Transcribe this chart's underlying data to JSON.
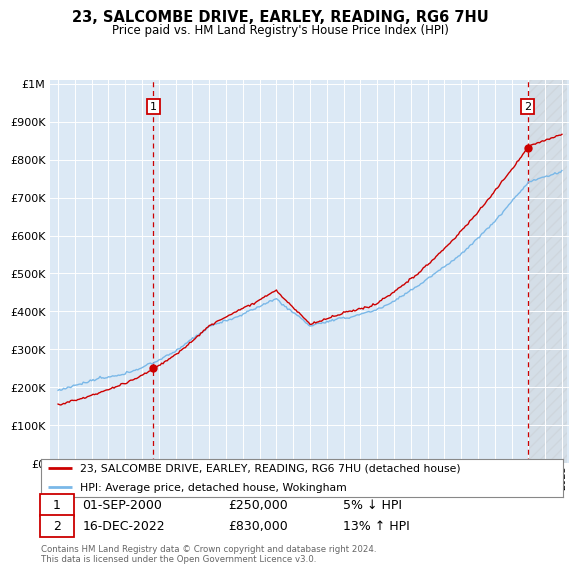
{
  "title": "23, SALCOMBE DRIVE, EARLEY, READING, RG6 7HU",
  "subtitle": "Price paid vs. HM Land Registry's House Price Index (HPI)",
  "yticks": [
    0,
    100000,
    200000,
    300000,
    400000,
    500000,
    600000,
    700000,
    800000,
    900000,
    1000000
  ],
  "background_color": "#dce9f5",
  "grid_color": "#ffffff",
  "hpi_color": "#7ab8e8",
  "price_color": "#cc0000",
  "t1_year": 2000.667,
  "t1_price": 250000,
  "t2_year": 2022.958,
  "t2_price": 830000,
  "legend_label1": "23, SALCOMBE DRIVE, EARLEY, READING, RG6 7HU (detached house)",
  "legend_label2": "HPI: Average price, detached house, Wokingham",
  "footer": "Contains HM Land Registry data © Crown copyright and database right 2024.\nThis data is licensed under the Open Government Licence v3.0.",
  "ann1_num": "1",
  "ann1_date": "01-SEP-2000",
  "ann1_price": "£250,000",
  "ann1_hpi": "5% ↓ HPI",
  "ann2_num": "2",
  "ann2_date": "16-DEC-2022",
  "ann2_price": "£830,000",
  "ann2_hpi": "13% ↑ HPI",
  "xstart": 1995,
  "xend": 2025
}
